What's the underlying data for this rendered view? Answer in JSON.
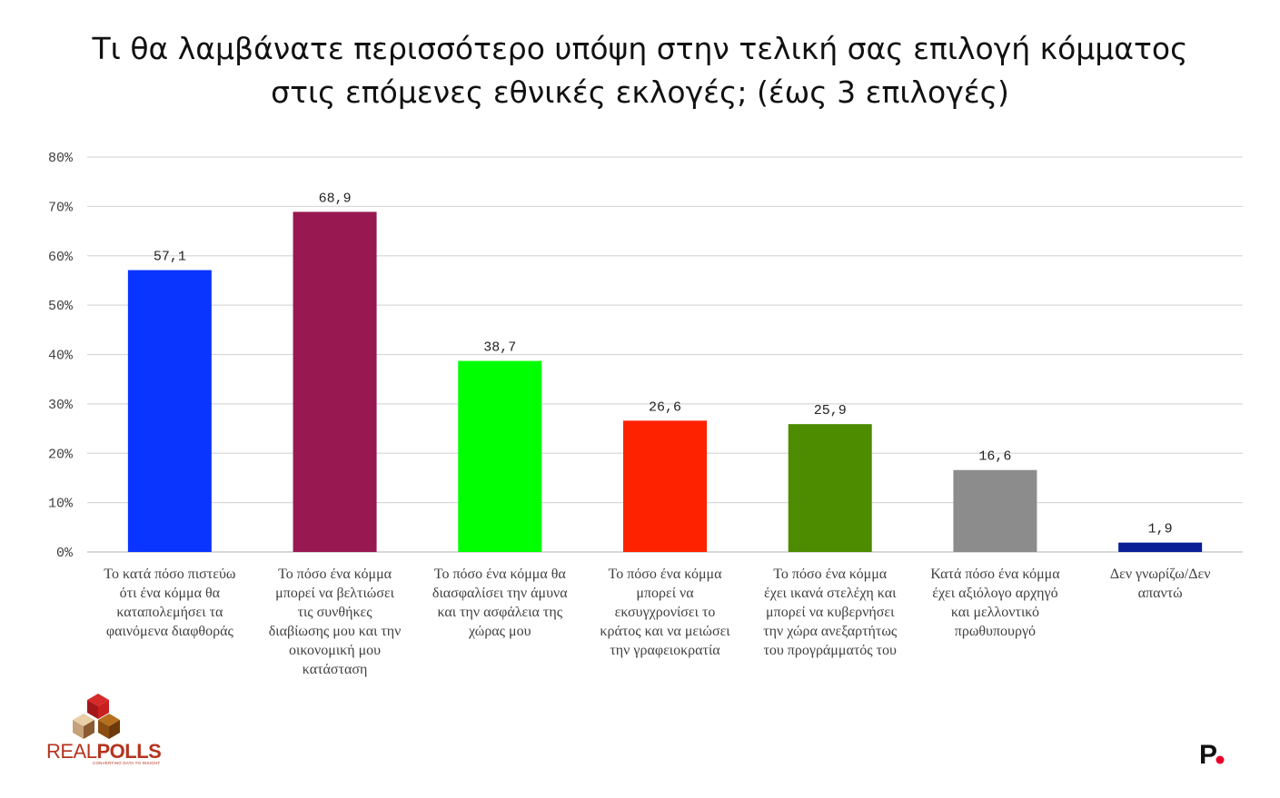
{
  "chart_data": {
    "type": "bar",
    "title": [
      "Τι θα λαμβάνατε περισσότερο υπόψη στην τελική σας επιλογή κόμματος",
      "στις επόμενες εθνικές εκλογές; (έως 3 επιλογές)"
    ],
    "categories": [
      [
        "Το κατά πόσο πιστεύω",
        "ότι ένα κόμμα θα",
        "καταπολεμήσει τα",
        "φαινόμενα διαφθοράς"
      ],
      [
        "Το πόσο ένα κόμμα",
        "μπορεί να βελτιώσει",
        "τις συνθήκες",
        "διαβίωσης μου και την",
        "οικονομική μου",
        "κατάσταση"
      ],
      [
        "Το πόσο ένα κόμμα θα",
        "διασφαλίσει την άμυνα",
        "και την ασφάλεια της",
        "χώρας μου"
      ],
      [
        "Το πόσο ένα κόμμα",
        "μπορεί να",
        "εκσυγχρονίσει το",
        "κράτος και να μειώσει",
        "την γραφειοκρατία"
      ],
      [
        "Το πόσο ένα κόμμα",
        "έχει ικανά στελέχη και",
        "μπορεί να κυβερνήσει",
        "την χώρα ανεξαρτήτως",
        "του προγράμματός του"
      ],
      [
        "Κατά πόσο ένα κόμμα",
        "έχει αξιόλογο αρχηγό",
        "και μελλοντικό",
        "πρωθυπουργό"
      ],
      [
        "Δεν γνωρίζω/Δεν",
        "απαντώ"
      ]
    ],
    "values": [
      57.1,
      68.9,
      38.7,
      26.6,
      25.9,
      16.6,
      1.9
    ],
    "value_labels": [
      "57,1",
      "68,9",
      "38,7",
      "26,6",
      "25,9",
      "16,6",
      "1,9"
    ],
    "colors": [
      "#0a34ff",
      "#981851",
      "#00ff00",
      "#ff2200",
      "#4d8b00",
      "#8c8c8c",
      "#0a1e96"
    ],
    "ylim": [
      0,
      80
    ],
    "yticks": [
      0,
      10,
      20,
      30,
      40,
      50,
      60,
      70,
      80
    ],
    "ytick_labels": [
      "0%",
      "10%",
      "20%",
      "30%",
      "40%",
      "50%",
      "60%",
      "70%",
      "80%"
    ],
    "grid": true,
    "xlabel": "",
    "ylabel": ""
  },
  "branding": {
    "logo_left": {
      "word_light": "REAL",
      "word_bold": "POLLS",
      "tagline": "CONVERTING DATA TO INSIGHT"
    },
    "logo_right": {
      "letter": "P",
      "dot_color": "#e8002a"
    }
  }
}
